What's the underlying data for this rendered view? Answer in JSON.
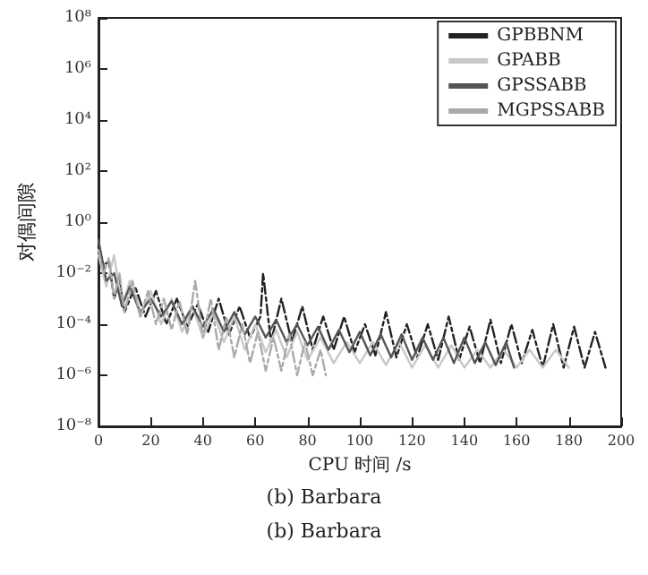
{
  "chart_data": {
    "type": "line",
    "xlabel": "CPU 时间 /s",
    "ylabel": "对偶间隙",
    "log": "y",
    "grid": false,
    "legend": "top right",
    "marker": "none",
    "xlim": [
      0,
      200
    ],
    "xticks": [
      0,
      20,
      40,
      60,
      80,
      100,
      120,
      140,
      160,
      180,
      200
    ],
    "ylim": [
      1e-08,
      100000000.0
    ],
    "yticks": [
      {
        "value": 1e-08,
        "label": "10⁻⁸"
      },
      {
        "value": 1e-06,
        "label": "10⁻⁶"
      },
      {
        "value": 0.0001,
        "label": "10⁻⁴"
      },
      {
        "value": 0.01,
        "label": "10⁻²"
      },
      {
        "value": 1,
        "label": "10⁰"
      },
      {
        "value": 100,
        "label": "10²"
      },
      {
        "value": 10000,
        "label": "10⁴"
      },
      {
        "value": 1000000,
        "label": "10⁶"
      },
      {
        "value": 100000000,
        "label": "10⁸"
      }
    ],
    "annotations": [
      "(b) Barbara",
      "(b) Barbara"
    ],
    "series": [
      {
        "name": "GPBBNM",
        "color": "#222222",
        "line_style": "dashed",
        "x": [
          0,
          2,
          4,
          6,
          8,
          10,
          14,
          18,
          22,
          26,
          30,
          34,
          38,
          42,
          46,
          50,
          54,
          58,
          62,
          63,
          66,
          70,
          74,
          78,
          82,
          86,
          90,
          94,
          98,
          102,
          106,
          110,
          114,
          118,
          122,
          126,
          130,
          134,
          138,
          142,
          146,
          150,
          154,
          158,
          162,
          166,
          170,
          174,
          178,
          182,
          186,
          190,
          194
        ],
        "values": [
          0.1,
          0.02,
          0.03,
          0.001,
          0.005,
          0.0003,
          0.003,
          0.0002,
          0.002,
          0.0001,
          0.001,
          8e-05,
          0.0006,
          5e-05,
          0.001,
          4e-05,
          0.0005,
          3e-05,
          0.0002,
          0.01,
          2e-05,
          0.001,
          2e-05,
          0.0005,
          1e-05,
          0.0002,
          1e-05,
          0.0002,
          8e-06,
          0.0001,
          6e-06,
          0.0003,
          5e-06,
          0.0001,
          5e-06,
          0.0001,
          4e-06,
          0.0002,
          4e-06,
          8e-05,
          3e-06,
          0.00015,
          3e-06,
          0.0001,
          3e-06,
          6e-05,
          2e-06,
          0.0001,
          2e-06,
          8e-05,
          2e-06,
          5e-05,
          2e-06
        ]
      },
      {
        "name": "GPABB",
        "color": "#c8c8c8",
        "line_style": "solid",
        "x": [
          0,
          3,
          6,
          9,
          12,
          16,
          20,
          24,
          28,
          32,
          36,
          40,
          44,
          48,
          52,
          56,
          60,
          64,
          68,
          72,
          76,
          80,
          85,
          90,
          95,
          100,
          105,
          110,
          115,
          120,
          125,
          130,
          135,
          140,
          145,
          150,
          155,
          160,
          165,
          170,
          175,
          180
        ],
        "values": [
          0.05,
          0.003,
          0.05,
          0.0005,
          0.005,
          0.0002,
          0.002,
          0.0001,
          0.001,
          5e-05,
          0.0005,
          3e-05,
          0.0003,
          2e-05,
          0.0002,
          1e-05,
          0.0001,
          8e-06,
          6e-05,
          5e-06,
          5e-05,
          4e-06,
          3e-05,
          3e-06,
          2e-05,
          3e-06,
          2e-05,
          2.5e-06,
          2e-05,
          2e-06,
          1.5e-05,
          2e-06,
          1.5e-05,
          2e-06,
          1e-05,
          2e-06,
          1e-05,
          2e-06,
          1e-05,
          2e-06,
          1e-05,
          2e-06
        ]
      },
      {
        "name": "GPSSABB",
        "color": "#555555",
        "line_style": "solid",
        "x": [
          0,
          3,
          6,
          9,
          12,
          16,
          20,
          24,
          28,
          32,
          36,
          40,
          44,
          48,
          52,
          56,
          60,
          64,
          68,
          72,
          76,
          80,
          84,
          88,
          92,
          96,
          100,
          104,
          108,
          112,
          116,
          120,
          124,
          128,
          132,
          136,
          140,
          144,
          148,
          152,
          156,
          159
        ],
        "values": [
          0.2,
          0.005,
          0.01,
          0.0005,
          0.003,
          0.0003,
          0.001,
          0.0002,
          0.0008,
          0.0001,
          0.0005,
          8e-05,
          0.0004,
          5e-05,
          0.0003,
          4e-05,
          0.0002,
          3e-05,
          0.00015,
          2e-05,
          0.0001,
          1.5e-05,
          8e-05,
          1e-05,
          6e-05,
          8e-06,
          5e-05,
          6e-06,
          4e-05,
          5e-06,
          4e-05,
          4e-06,
          3e-05,
          4e-06,
          3e-05,
          3e-06,
          3e-05,
          3e-06,
          2e-05,
          2.5e-06,
          2e-05,
          2e-06
        ]
      },
      {
        "name": "MGPSSABB",
        "color": "#aaaaaa",
        "line_style": "dashed",
        "x": [
          0,
          2,
          4,
          6,
          8,
          10,
          13,
          16,
          19,
          22,
          25,
          28,
          31,
          34,
          37,
          40,
          43,
          46,
          49,
          52,
          55,
          58,
          61,
          64,
          67,
          70,
          73,
          76,
          79,
          82,
          85,
          87
        ],
        "values": [
          0.08,
          0.01,
          0.04,
          0.001,
          0.01,
          0.0003,
          0.005,
          0.0002,
          0.002,
          0.0001,
          0.001,
          6e-05,
          0.0008,
          4e-05,
          0.005,
          3e-05,
          0.001,
          1e-05,
          0.0002,
          5e-06,
          0.0001,
          3e-06,
          5e-05,
          1.5e-06,
          3e-05,
          1.5e-06,
          4e-05,
          1e-06,
          2e-05,
          1e-06,
          1e-05,
          1e-06
        ]
      }
    ]
  }
}
